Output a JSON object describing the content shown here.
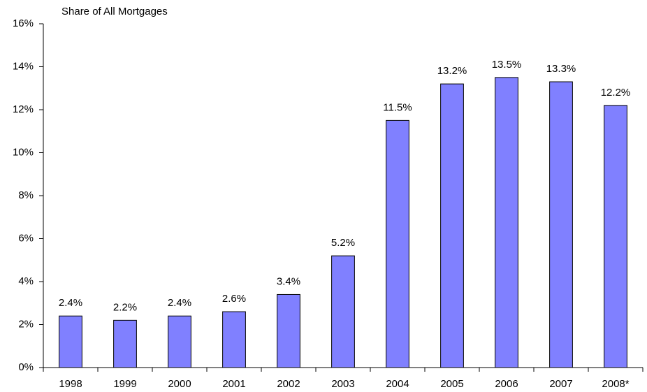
{
  "chart_data": {
    "type": "bar",
    "y_axis_label": "Share of All Mortgages",
    "categories": [
      "1998",
      "1999",
      "2000",
      "2001",
      "2002",
      "2003",
      "2004",
      "2005",
      "2006",
      "2007",
      "2008*"
    ],
    "values": [
      2.4,
      2.2,
      2.4,
      2.6,
      3.4,
      5.2,
      11.5,
      13.2,
      13.5,
      13.3,
      12.2
    ],
    "value_labels": [
      "2.4%",
      "2.2%",
      "2.4%",
      "2.6%",
      "3.4%",
      "5.2%",
      "11.5%",
      "13.2%",
      "13.5%",
      "13.3%",
      "12.2%"
    ],
    "color": "#8080ff",
    "ylim": [
      0,
      16
    ],
    "yticks": [
      {
        "value": 0,
        "label": "0%"
      },
      {
        "value": 2,
        "label": "2%"
      },
      {
        "value": 4,
        "label": "4%"
      },
      {
        "value": 6,
        "label": "6%"
      },
      {
        "value": 8,
        "label": "8%"
      },
      {
        "value": 10,
        "label": "10%"
      },
      {
        "value": 12,
        "label": "12%"
      },
      {
        "value": 14,
        "label": "14%"
      },
      {
        "value": 16,
        "label": "16%"
      }
    ],
    "grid": false
  }
}
